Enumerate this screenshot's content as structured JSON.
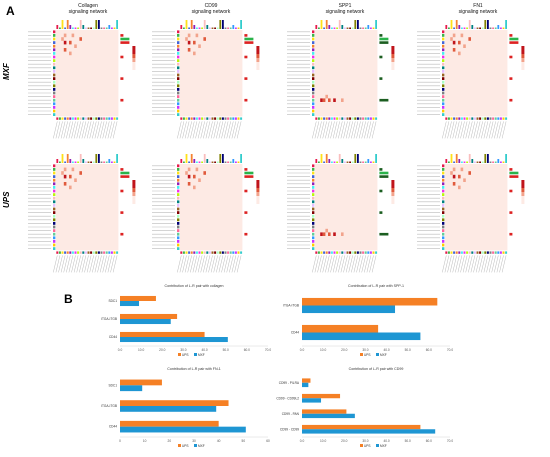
{
  "figure": {
    "panel_a": "A",
    "panel_b": "B",
    "rows": [
      "MXF",
      "UPS"
    ],
    "heatmap_titles": [
      [
        "Collagen",
        "signaling network"
      ],
      [
        "CD99",
        "signaling network"
      ],
      [
        "SPP1",
        "signaling network"
      ],
      [
        "FN1",
        "signaling network"
      ]
    ],
    "colors": {
      "ups": "#f58025",
      "mxf": "#1e96d3",
      "heat_low": "#fdeae4",
      "heat_high": "#c0141b"
    }
  },
  "chart_data": [
    {
      "type": "bar",
      "title": "Contribution of L-R pair with collagen",
      "categories": [
        "SDC1",
        "ITGA-ITGB",
        "CD44"
      ],
      "series": [
        {
          "name": "UPS",
          "values": [
            17,
            27,
            40
          ]
        },
        {
          "name": "MXF",
          "values": [
            9,
            24,
            51
          ]
        }
      ],
      "xlim": [
        0,
        70
      ],
      "xticks": [
        "0.0",
        "10.0",
        "20.0",
        "30.0",
        "40.0",
        "50.0",
        "60.0",
        "70.0"
      ]
    },
    {
      "type": "bar",
      "title": "Contribution of L-R pair with SPP-1",
      "categories": [
        "ITGA-ITGB",
        "CD44"
      ],
      "series": [
        {
          "name": "UPS",
          "values": [
            64,
            36
          ]
        },
        {
          "name": "MXF",
          "values": [
            44,
            56
          ]
        }
      ],
      "xlim": [
        0,
        70
      ],
      "xticks": [
        "0.0",
        "10.0",
        "20.0",
        "30.0",
        "40.0",
        "50.0",
        "60.0",
        "70.0"
      ]
    },
    {
      "type": "bar",
      "title": "Contribution of L-R pair with FN-1",
      "categories": [
        "SDC1",
        "ITGA-ITGB",
        "CD44"
      ],
      "series": [
        {
          "name": "UPS",
          "values": [
            17,
            44,
            40
          ]
        },
        {
          "name": "MXF",
          "values": [
            9,
            39,
            51
          ]
        }
      ],
      "xlim": [
        0,
        60
      ],
      "xticks": [
        "0",
        "10",
        "20",
        "30",
        "40",
        "50",
        "60"
      ]
    },
    {
      "type": "bar",
      "title": "Contribution of L-R pair with CD99",
      "categories": [
        "CD99 - PILRA",
        "CD99 - CD99L2",
        "CD99 - PAN",
        "CD99 - CD99"
      ],
      "series": [
        {
          "name": "UPS",
          "values": [
            4,
            18,
            21,
            56
          ]
        },
        {
          "name": "MXF",
          "values": [
            3,
            9,
            25,
            63
          ]
        }
      ],
      "xlim": [
        0,
        70
      ],
      "xticks": [
        "0.0",
        "10.0",
        "20.0",
        "30.0",
        "40.0",
        "50.0",
        "60.0",
        "70.0"
      ]
    }
  ]
}
